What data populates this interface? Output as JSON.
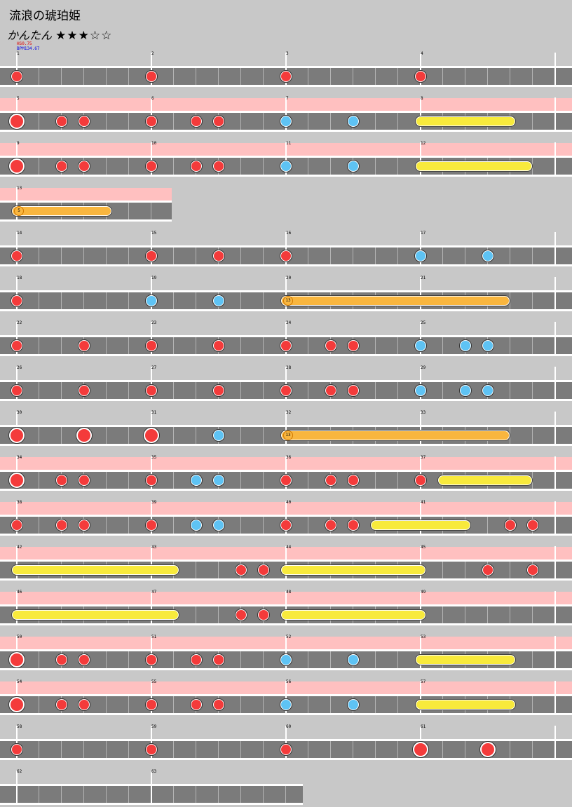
{
  "song": {
    "title": "流浪の琥珀姫",
    "difficulty": "かんたん",
    "stars": "★★★☆☆",
    "hs": "HS0.75",
    "bpm": "BPM134.67"
  },
  "colors": {
    "don": "#f43b3b",
    "ka": "#5ec3f4",
    "drumroll": "#f8ea3c",
    "balloon": "#f9b63f",
    "gogo": "#ffc0c0"
  },
  "rows": [
    {
      "width": 1,
      "gogo": false,
      "measures": [
        "1",
        "2",
        "3",
        "4"
      ],
      "notes": [
        [
          "d",
          0
        ],
        [
          "d",
          6
        ],
        [
          "d",
          12
        ],
        [
          "d",
          18
        ]
      ]
    },
    {
      "width": 1,
      "gogo": true,
      "measures": [
        "5",
        "6",
        "7",
        "8"
      ],
      "notes": [
        [
          "D",
          0
        ],
        [
          "d",
          2
        ],
        [
          "d",
          3
        ],
        [
          "d",
          6
        ],
        [
          "d",
          8
        ],
        [
          "d",
          9
        ],
        [
          "k",
          12
        ],
        [
          "k",
          15
        ]
      ],
      "rolls": [
        [
          "r",
          18,
          22
        ]
      ]
    },
    {
      "width": 1,
      "gogo": true,
      "measures": [
        "9",
        "10",
        "11",
        "12"
      ],
      "notes": [
        [
          "D",
          0
        ],
        [
          "d",
          2
        ],
        [
          "d",
          3
        ],
        [
          "d",
          6
        ],
        [
          "d",
          8
        ],
        [
          "d",
          9
        ],
        [
          "k",
          12
        ],
        [
          "k",
          15
        ]
      ],
      "rolls": [
        [
          "r",
          18,
          22.75
        ]
      ]
    },
    {
      "width": 0.3,
      "gogo": true,
      "measures": [
        "13"
      ],
      "balloons": [
        [
          0,
          4,
          "5"
        ]
      ]
    },
    {
      "width": 1,
      "gogo": false,
      "measures": [
        "14",
        "15",
        "16",
        "17"
      ],
      "notes": [
        [
          "d",
          0
        ],
        [
          "d",
          6
        ],
        [
          "d",
          9
        ],
        [
          "d",
          12
        ],
        [
          "k",
          18
        ],
        [
          "k",
          21
        ]
      ]
    },
    {
      "width": 1,
      "gogo": false,
      "measures": [
        "18",
        "19",
        "20",
        "21"
      ],
      "notes": [
        [
          "d",
          0
        ],
        [
          "k",
          6
        ],
        [
          "k",
          9
        ]
      ],
      "balloons": [
        [
          12,
          21.75,
          "13"
        ]
      ]
    },
    {
      "width": 1,
      "gogo": false,
      "measures": [
        "22",
        "23",
        "24",
        "25"
      ],
      "notes": [
        [
          "d",
          0
        ],
        [
          "d",
          3
        ],
        [
          "d",
          6
        ],
        [
          "d",
          9
        ],
        [
          "d",
          12
        ],
        [
          "d",
          14
        ],
        [
          "d",
          15
        ],
        [
          "k",
          18
        ],
        [
          "k",
          20
        ],
        [
          "k",
          21
        ]
      ]
    },
    {
      "width": 1,
      "gogo": false,
      "measures": [
        "26",
        "27",
        "28",
        "29"
      ],
      "notes": [
        [
          "d",
          0
        ],
        [
          "d",
          3
        ],
        [
          "d",
          6
        ],
        [
          "d",
          9
        ],
        [
          "d",
          12
        ],
        [
          "d",
          14
        ],
        [
          "d",
          15
        ],
        [
          "k",
          18
        ],
        [
          "k",
          20
        ],
        [
          "k",
          21
        ]
      ]
    },
    {
      "width": 1,
      "gogo": false,
      "measures": [
        "30",
        "31",
        "32",
        "33"
      ],
      "notes": [
        [
          "D",
          0
        ],
        [
          "D",
          3
        ],
        [
          "D",
          6
        ],
        [
          "k",
          9
        ]
      ],
      "balloons": [
        [
          12,
          21.75,
          "13"
        ]
      ]
    },
    {
      "width": 1,
      "gogo": true,
      "measures": [
        "34",
        "35",
        "36",
        "37"
      ],
      "notes": [
        [
          "D",
          0
        ],
        [
          "d",
          2
        ],
        [
          "d",
          3
        ],
        [
          "d",
          6
        ],
        [
          "k",
          8
        ],
        [
          "k",
          9
        ],
        [
          "d",
          12
        ],
        [
          "d",
          14
        ],
        [
          "d",
          15
        ],
        [
          "d",
          18
        ]
      ],
      "rolls": [
        [
          "r",
          19,
          22.75
        ]
      ]
    },
    {
      "width": 1,
      "gogo": true,
      "measures": [
        "38",
        "39",
        "40",
        "41"
      ],
      "notes": [
        [
          "d",
          0
        ],
        [
          "d",
          2
        ],
        [
          "d",
          3
        ],
        [
          "d",
          6
        ],
        [
          "k",
          8
        ],
        [
          "k",
          9
        ],
        [
          "d",
          12
        ],
        [
          "d",
          14
        ],
        [
          "d",
          15
        ],
        [
          "d",
          22
        ],
        [
          "d",
          23
        ]
      ],
      "rolls": [
        [
          "r",
          16,
          20
        ]
      ]
    },
    {
      "width": 1,
      "gogo": true,
      "measures": [
        "42",
        "43",
        "44",
        "45"
      ],
      "notes": [
        [
          "d",
          10
        ],
        [
          "d",
          11
        ],
        [
          "d",
          21
        ],
        [
          "d",
          23
        ]
      ],
      "rolls": [
        [
          "r",
          0,
          7
        ],
        [
          "r",
          12,
          18
        ]
      ]
    },
    {
      "width": 1,
      "gogo": true,
      "measures": [
        "46",
        "47",
        "48",
        "49"
      ],
      "notes": [
        [
          "d",
          10
        ],
        [
          "d",
          11
        ]
      ],
      "rolls": [
        [
          "r",
          0,
          7
        ],
        [
          "r",
          12,
          18
        ]
      ]
    },
    {
      "width": 1,
      "gogo": true,
      "measures": [
        "50",
        "51",
        "52",
        "53"
      ],
      "notes": [
        [
          "D",
          0
        ],
        [
          "d",
          2
        ],
        [
          "d",
          3
        ],
        [
          "d",
          6
        ],
        [
          "d",
          8
        ],
        [
          "d",
          9
        ],
        [
          "k",
          12
        ],
        [
          "k",
          15
        ]
      ],
      "rolls": [
        [
          "r",
          18,
          22
        ]
      ]
    },
    {
      "width": 1,
      "gogo": true,
      "measures": [
        "54",
        "55",
        "56",
        "57"
      ],
      "notes": [
        [
          "D",
          0
        ],
        [
          "d",
          2
        ],
        [
          "d",
          3
        ],
        [
          "d",
          6
        ],
        [
          "d",
          8
        ],
        [
          "d",
          9
        ],
        [
          "k",
          12
        ],
        [
          "k",
          15
        ]
      ],
      "rolls": [
        [
          "r",
          18,
          22
        ]
      ]
    },
    {
      "width": 1,
      "gogo": false,
      "measures": [
        "58",
        "59",
        "60",
        "61"
      ],
      "notes": [
        [
          "d",
          0
        ],
        [
          "d",
          6
        ],
        [
          "d",
          12
        ],
        [
          "D",
          18
        ],
        [
          "D",
          21
        ]
      ]
    },
    {
      "width": 0.53,
      "gogo": false,
      "measures": [
        "62",
        "63"
      ]
    }
  ]
}
